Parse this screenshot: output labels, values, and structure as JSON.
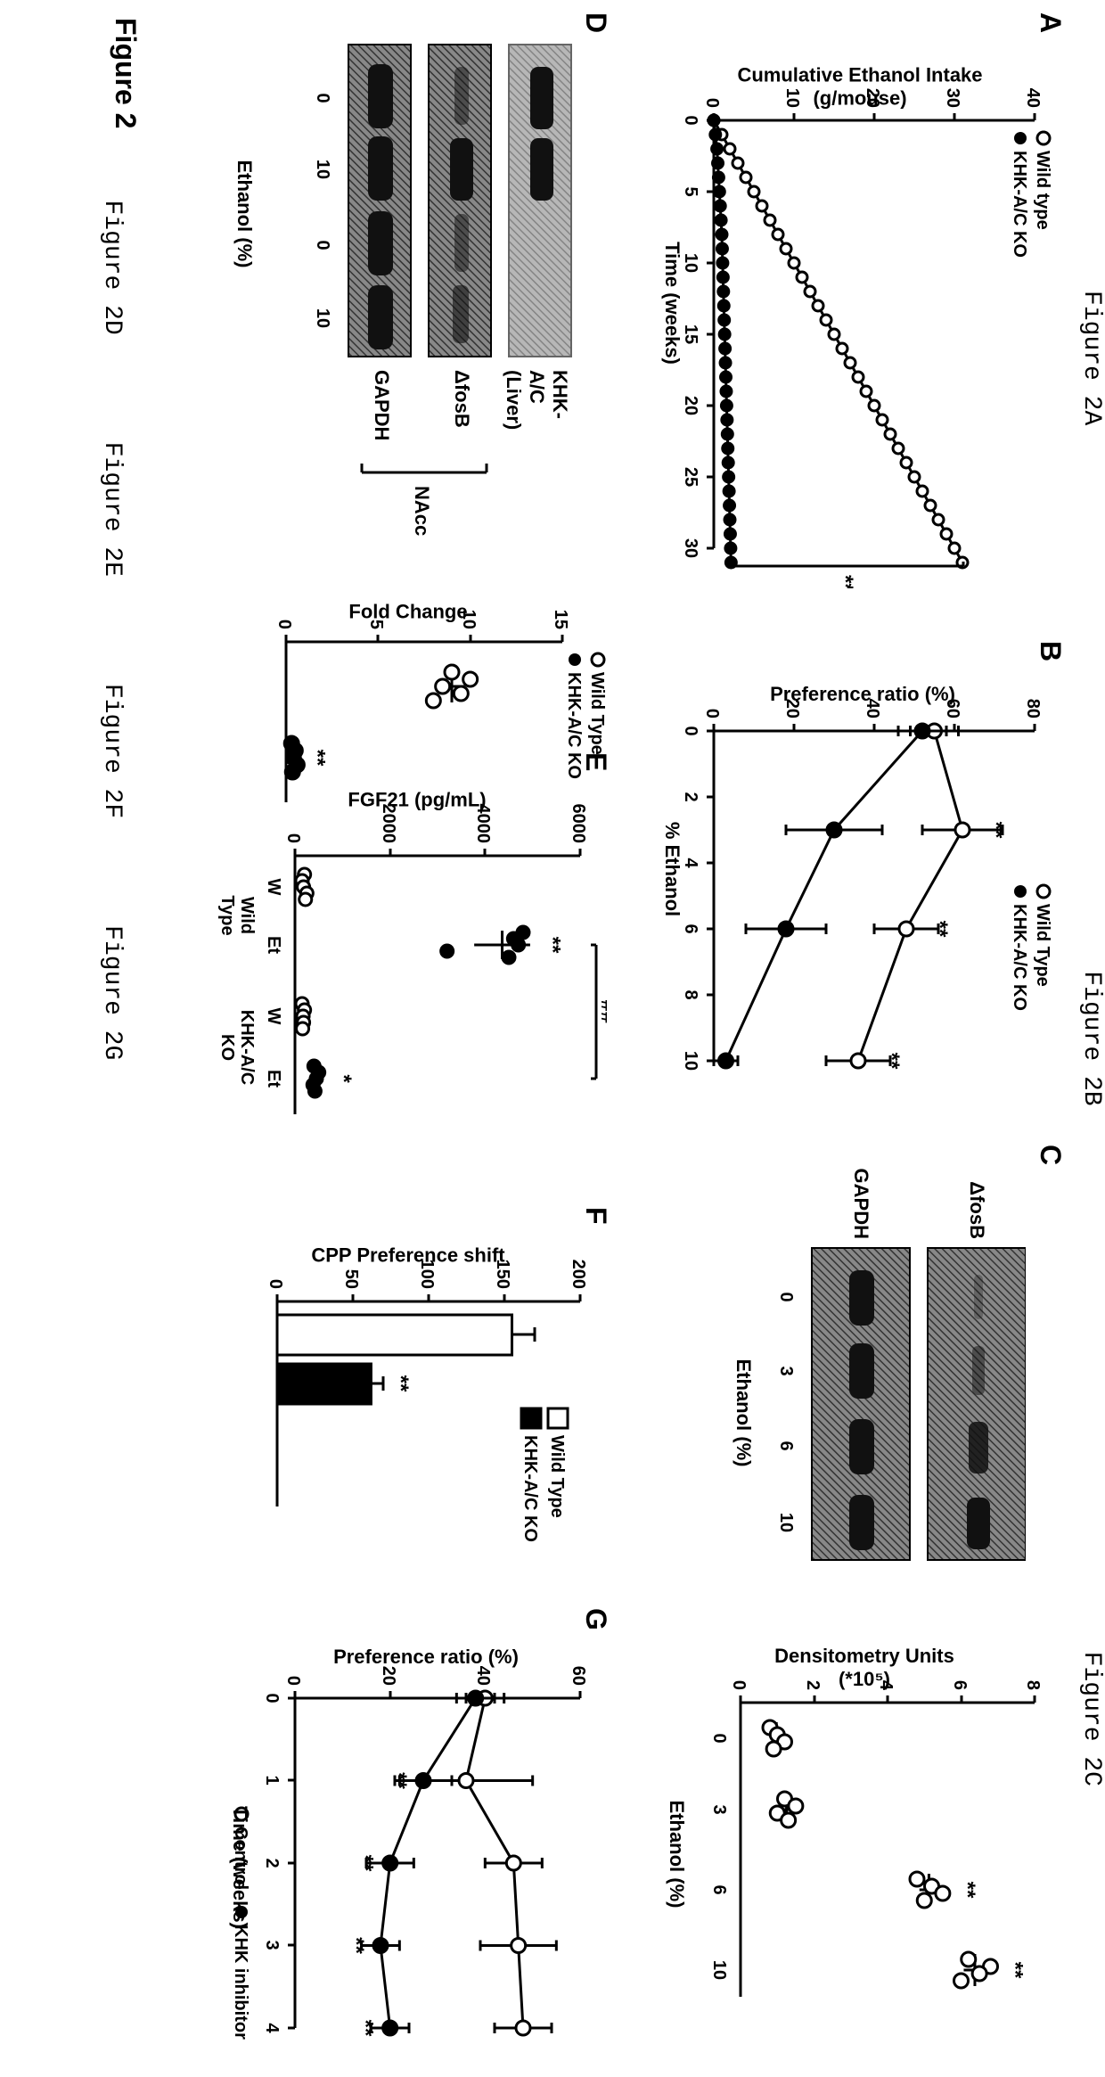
{
  "captions_top": [
    "Figure 2A",
    "Figure 2B",
    "Figure 2C"
  ],
  "captions_bottom": [
    "Figure 2D",
    "Figure 2E",
    "Figure 2F",
    "Figure 2G"
  ],
  "figure_main_label": "Figure 2",
  "panelA": {
    "letter": "A",
    "ylabel": "Cumulative Ethanol Intake\n(g/mouse)",
    "xlabel": "Time (weeks)",
    "ylim": [
      0,
      40
    ],
    "ytick_step": 10,
    "xlim": [
      0,
      30
    ],
    "xtick_step": 5,
    "legend": [
      {
        "label": "Wild type",
        "marker": "open",
        "color": "#000000"
      },
      {
        "label": "KHK-A/C KO",
        "marker": "filled",
        "color": "#000000"
      }
    ],
    "series": [
      {
        "marker": "open",
        "y": [
          0,
          1,
          2,
          3,
          4,
          5,
          6,
          7,
          8,
          9,
          10,
          11,
          12,
          13,
          14,
          15,
          16,
          17,
          18,
          19,
          20,
          21,
          22,
          23,
          24,
          25,
          26,
          27,
          28,
          29,
          30,
          31
        ]
      },
      {
        "marker": "filled",
        "y": [
          0,
          0.2,
          0.4,
          0.5,
          0.6,
          0.7,
          0.8,
          0.9,
          1.0,
          1.05,
          1.1,
          1.15,
          1.2,
          1.25,
          1.3,
          1.35,
          1.4,
          1.45,
          1.5,
          1.55,
          1.6,
          1.65,
          1.7,
          1.75,
          1.8,
          1.85,
          1.9,
          1.95,
          2.0,
          2.05,
          2.1,
          2.15
        ]
      }
    ],
    "sig_label": "**",
    "line_width": 2,
    "marker_size": 6
  },
  "panelB": {
    "letter": "B",
    "ylabel": "Preference ratio (%)",
    "xlabel": "% Ethanol",
    "ylim": [
      0,
      80
    ],
    "ytick_step": 20,
    "xticks": [
      0,
      2,
      4,
      6,
      8,
      10
    ],
    "legend": [
      {
        "label": "Wild Type",
        "marker": "open"
      },
      {
        "label": "KHK-A/C KO",
        "marker": "filled"
      }
    ],
    "series": [
      {
        "marker": "open",
        "x": [
          0,
          3,
          6,
          10
        ],
        "y": [
          55,
          62,
          48,
          36
        ],
        "err": [
          6,
          10,
          8,
          8
        ]
      },
      {
        "marker": "filled",
        "x": [
          0,
          3,
          6,
          10
        ],
        "y": [
          52,
          30,
          18,
          3
        ],
        "err": [
          6,
          12,
          10,
          3
        ]
      }
    ],
    "sig_x": [
      3,
      6,
      10
    ],
    "sig_label": "**",
    "line_width": 2
  },
  "panelC": {
    "letter": "C",
    "blot_labels": [
      "ΔfosB",
      "GAPDH"
    ],
    "blot_xlabel": "Ethanol (%)",
    "blot_xticks": [
      "0",
      "3",
      "6",
      "10"
    ],
    "scatter_ylabel": "Densitometry Units\n(*10⁵)",
    "scatter_xlabel": "Ethanol (%)",
    "scatter_ylim": [
      0,
      8
    ],
    "scatter_ytick_step": 2,
    "scatter_xticks": [
      0,
      3,
      6,
      10
    ],
    "scatter_points": {
      "0": [
        0.8,
        1.0,
        1.2,
        0.9
      ],
      "3": [
        1.2,
        1.5,
        1.0,
        1.3
      ],
      "6": [
        4.8,
        5.2,
        5.5,
        5.0
      ],
      "10": [
        6.2,
        6.8,
        6.5,
        6.0
      ]
    },
    "scatter_sig": {
      "6": "**",
      "10": "**"
    }
  },
  "panelD": {
    "letter": "D",
    "blot_labels": [
      "KHK-A/C (Liver)",
      "ΔfosB",
      "GAPDH"
    ],
    "nacc_label": "NAcc",
    "xlabel": "Ethanol (%)",
    "xticks": [
      "0",
      "10",
      "0",
      "10"
    ],
    "scatter_ylabel": "Fold Change",
    "scatter_ylim": [
      0,
      15
    ],
    "scatter_ytick_step": 5,
    "legend": [
      {
        "label": "Wild Type",
        "marker": "open"
      },
      {
        "label": "KHK-A/C KO",
        "marker": "filled"
      }
    ],
    "points_wt": [
      9,
      10,
      8.5,
      9.5,
      8
    ],
    "points_ko": [
      0.3,
      0.5,
      0.4,
      0.6,
      0.35
    ],
    "sig": "**"
  },
  "panelE": {
    "letter": "E",
    "ylabel": "FGF21 (pg/mL)",
    "ylim": [
      0,
      6000
    ],
    "ytick_step": 2000,
    "groups": [
      "W",
      "Et",
      "W",
      "Et"
    ],
    "group_sub": [
      "Wild\nType",
      "KHK-A/C\nKO"
    ],
    "points": {
      "WT_W": [
        200,
        150,
        180,
        250,
        220
      ],
      "WT_Et": [
        4800,
        4600,
        4700,
        3200,
        4500
      ],
      "KO_W": [
        150,
        200,
        170,
        180,
        160
      ],
      "KO_Et": [
        400,
        500,
        450,
        380,
        420
      ]
    },
    "sig": {
      "WT_Et": "**",
      "KO_Et": "*",
      "between": "##"
    }
  },
  "panelF": {
    "letter": "F",
    "ylabel": "CPP Preference shift",
    "ylim": [
      0,
      200
    ],
    "ytick_step": 50,
    "bars": [
      {
        "label": "Wild Type",
        "value": 155,
        "err": 15,
        "fill": "#ffffff"
      },
      {
        "label": "KHK-A/C KO",
        "value": 62,
        "err": 8,
        "fill": "#000000"
      }
    ],
    "sig": "**"
  },
  "panelG": {
    "letter": "G",
    "ylabel": "Preference ratio (%)",
    "xlabel": "Time (weeks)",
    "ylim": [
      0,
      60
    ],
    "ytick_step": 20,
    "xticks": [
      0,
      1,
      2,
      3,
      4
    ],
    "legend": [
      {
        "label": "Control",
        "marker": "open"
      },
      {
        "label": "KHK inhibitor",
        "marker": "filled"
      }
    ],
    "series": [
      {
        "marker": "open",
        "x": [
          0,
          1,
          2,
          3,
          4
        ],
        "y": [
          40,
          36,
          46,
          47,
          48
        ],
        "err": [
          4,
          14,
          6,
          8,
          6
        ]
      },
      {
        "marker": "filled",
        "x": [
          0,
          1,
          2,
          3,
          4
        ],
        "y": [
          38,
          27,
          20,
          18,
          20
        ],
        "err": [
          4,
          6,
          5,
          4,
          4
        ]
      }
    ],
    "sig_x": [
      1,
      2,
      3,
      4
    ],
    "sig_label": "**"
  },
  "colors": {
    "stroke": "#000000",
    "background": "#ffffff"
  }
}
